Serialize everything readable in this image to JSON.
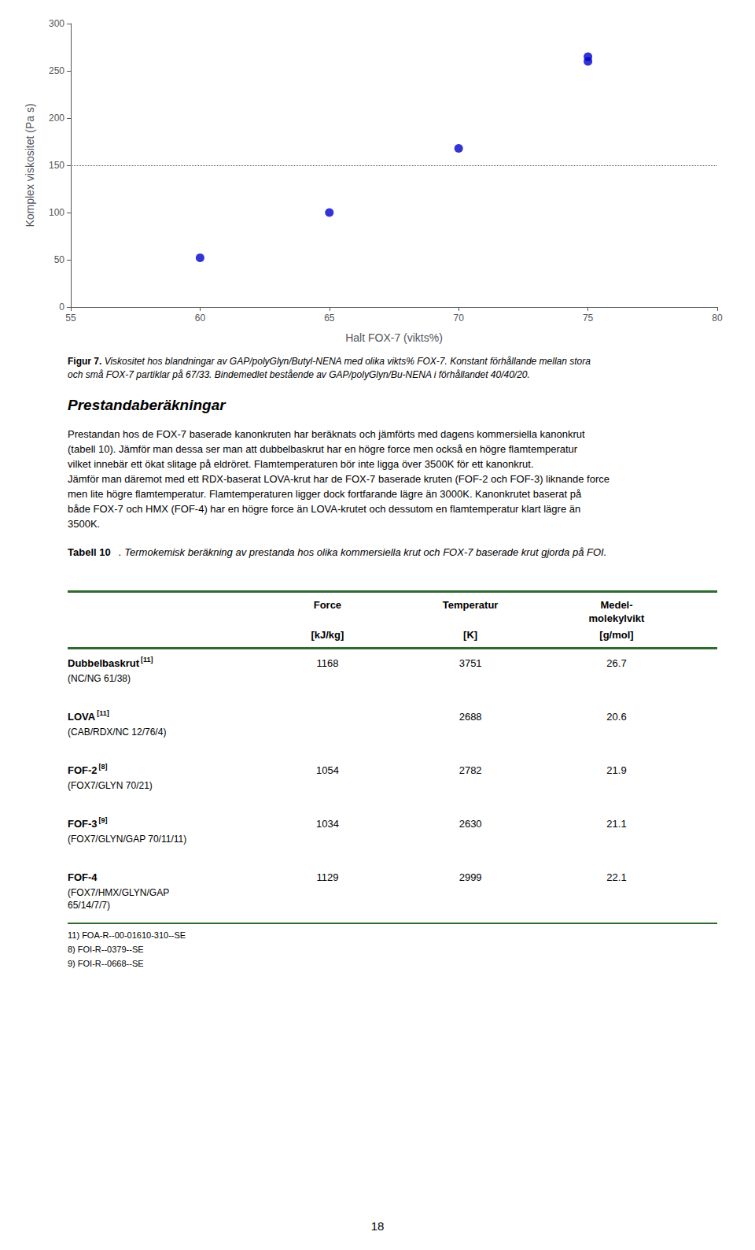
{
  "chart_data": {
    "type": "scatter",
    "x": [
      60,
      65,
      70,
      75,
      75
    ],
    "values": [
      52,
      100,
      168,
      265,
      260
    ],
    "color": "#0000cc",
    "marker": "circle",
    "xlabel": "Halt FOX-7 (vikts%)",
    "ylabel": "Komplex viskositet (Pa s)",
    "xlim": [
      55,
      80
    ],
    "xticks": [
      55,
      60,
      65,
      70,
      75,
      80
    ],
    "ylim": [
      0,
      300
    ],
    "yticks": [
      0,
      50,
      100,
      150,
      200,
      250,
      300
    ],
    "grid": false,
    "reference_lines": [
      {
        "y": 150,
        "color": "#555555",
        "line_style": "dotted"
      }
    ],
    "caption": [
      "Figur 7.",
      " Viskositet hos blandningar av GAP/polyGlyn/Butyl-NENA med olika vikts% FOX-7. Konstant förhållande mellan stora och små FOX-7 partiklar på 67/33. Bindemedlet bestående av GAP/polyGlyn/Bu-NENA i förhållandet 40/40/20."
    ],
    "section_title": "Prestandaberäkningar",
    "body_text": "Prestandan hos de FOX-7 baserade kanonkruten har beräknats och jämförts med dagens kommersiella kanonkrut (tabell 10). Jämför man dessa ser man att dubbelbaskrut har en högre force men också en högre flamtemperatur vilket innebär ett ökat slitage på eldröret. Flamtemperaturen bör inte ligga över 3500K för ett kanonkrut. Jämför man däremot med ett RDX-baserat LOVA-krut har de FOX-7 baserade kruten (FOF-2 och FOF-3) liknande force men lite högre flamtemperatur. Flamtemperaturen ligger dock fortfarande lägre än 3000K. Kanonkrutet baserat på både FOX-7 och HMX (FOF-4) har en högre force än LOVA-krutet och dessutom en flamtemperatur klart lägre än 3500K.",
    "table_caption": [
      "Tabell 10",
      ". Termokemisk beräkning av prestanda hos olika kommersiella krut och FOX-7 baserade krut gjorda på FOI."
    ],
    "table": {
      "color": "#2d6a2d",
      "columns": [
        {
          "header": [
            "Force"
          ],
          "unit": "[kJ/kg]"
        },
        {
          "header": [
            "Temperatur"
          ],
          "unit": "[K]"
        },
        {
          "header": [
            "Medel-",
            "molekylvikt"
          ],
          "unit": "[g/mol]"
        }
      ],
      "rows": [
        {
          "name": "Dubbelbaskrut",
          "ref": "[11]",
          "description": [
            "(NC/NG 61/38)"
          ],
          "values": [
            1168,
            3751,
            26.7
          ]
        },
        {
          "name": "LOVA",
          "ref": "[11]",
          "description": [
            "(CAB/RDX/NC 12/76/4)"
          ],
          "values": [
            null,
            2688,
            20.6
          ]
        },
        {
          "name": "FOF-2",
          "ref": "[8]",
          "description": [
            "(FOX7/GLYN 70/21)"
          ],
          "values": [
            1054,
            2782,
            21.9
          ]
        },
        {
          "name": "FOF-3",
          "ref": "[9]",
          "description": [
            "(FOX7/GLYN/GAP 70/11/11)"
          ],
          "values": [
            1034,
            2630,
            21.1
          ]
        },
        {
          "name": "FOF-4",
          "description": [
            "(FOX7/HMX/GLYN/GAP",
            "65/14/7/7)"
          ],
          "values": [
            1129,
            2999,
            22.1
          ]
        }
      ],
      "footnotes": [
        "11) FOA-R--00-01610-310--SE",
        "8) FOI-R--0379--SE",
        "9) FOI-R--0668--SE"
      ]
    },
    "page_number": "18"
  }
}
